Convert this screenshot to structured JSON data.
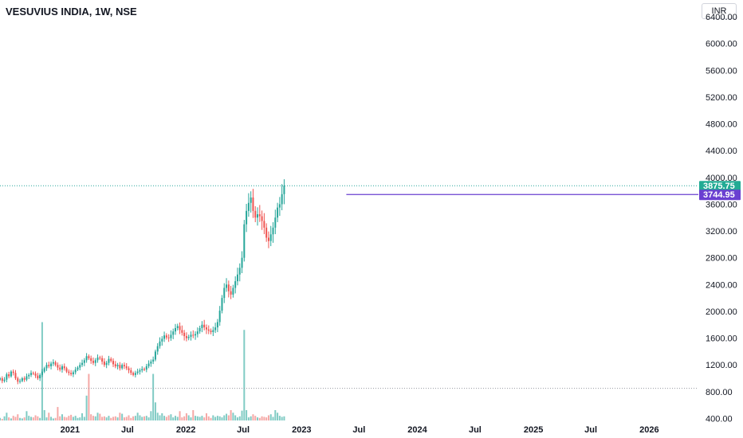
{
  "header": {
    "title": "VESUVIUS INDIA, 1W, NSE",
    "currency": "INR"
  },
  "colors": {
    "up": "#26a69a",
    "down": "#ef5350",
    "up_volume": "#80cbc4",
    "down_volume": "#f5a8a6",
    "last_price_tag": "#22ab94",
    "level_line": "#6a3fd1",
    "level_tag": "#6a3fd1"
  },
  "chart_data": {
    "type": "candlestick",
    "ylim": [
      370,
      6650
    ],
    "y_ticks": [
      "6400.00",
      "6000.00",
      "5600.00",
      "5200.00",
      "4800.00",
      "4400.00",
      "4000.00",
      "3600.00",
      "3200.00",
      "2800.00",
      "2400.00",
      "2000.00",
      "1600.00",
      "1200.00",
      "800.00",
      "400.00"
    ],
    "x_range": [
      "2020-05-25",
      "2026-06-05"
    ],
    "x_ticks": [
      {
        "date": "2021-01-01",
        "label": "2021"
      },
      {
        "date": "2021-07-01",
        "label": "Jul"
      },
      {
        "date": "2022-01-01",
        "label": "2022"
      },
      {
        "date": "2022-07-01",
        "label": "Jul"
      },
      {
        "date": "2023-01-01",
        "label": "2023"
      },
      {
        "date": "2023-07-01",
        "label": "Jul"
      },
      {
        "date": "2024-01-01",
        "label": "2024"
      },
      {
        "date": "2024-07-01",
        "label": "Jul"
      },
      {
        "date": "2025-01-01",
        "label": "2025"
      },
      {
        "date": "2025-07-01",
        "label": "Jul"
      },
      {
        "date": "2026-01-01",
        "label": "2026"
      }
    ],
    "last_price": {
      "value": 3875.75,
      "label": "3875.75"
    },
    "level_line": {
      "value": 3744.95,
      "label": "3744.95",
      "start": "2023-05-22"
    },
    "reference_line": 850,
    "start_date": "2020-05-25",
    "interval_days": 7,
    "closes": [
      1000,
      960,
      980,
      1060,
      1030,
      1100,
      1080,
      1000,
      950,
      960,
      1000,
      980,
      1030,
      1050,
      1080,
      1070,
      1040,
      1000,
      1050,
      1100,
      1150,
      1200,
      1180,
      1220,
      1240,
      1200,
      1160,
      1130,
      1180,
      1150,
      1100,
      1080,
      1060,
      1090,
      1130,
      1160,
      1200,
      1230,
      1270,
      1330,
      1300,
      1260,
      1230,
      1270,
      1310,
      1300,
      1250,
      1200,
      1230,
      1290,
      1260,
      1210,
      1180,
      1200,
      1150,
      1200,
      1180,
      1150,
      1120,
      1080,
      1050,
      1080,
      1100,
      1120,
      1140,
      1130,
      1180,
      1220,
      1250,
      1280,
      1400,
      1480,
      1550,
      1590,
      1640,
      1610,
      1600,
      1650,
      1700,
      1750,
      1780,
      1720,
      1680,
      1630,
      1600,
      1620,
      1650,
      1640,
      1660,
      1700,
      1750,
      1800,
      1760,
      1730,
      1710,
      1690,
      1720,
      1760,
      1840,
      2010,
      2200,
      2350,
      2400,
      2300,
      2250,
      2350,
      2450,
      2550,
      2650,
      2800,
      3300,
      3500,
      3620,
      3700,
      3500,
      3400,
      3450,
      3420,
      3350,
      3250,
      3100,
      3050,
      3150,
      3250,
      3400,
      3550,
      3600,
      3750,
      3875.75
    ],
    "volumes": [
      50,
      30,
      80,
      150,
      60,
      40,
      90,
      70,
      120,
      50,
      40,
      60,
      180,
      90,
      70,
      60,
      100,
      80,
      50,
      1900,
      200,
      60,
      150,
      70,
      40,
      50,
      260,
      80,
      120,
      70,
      60,
      90,
      110,
      70,
      90,
      50,
      60,
      140,
      70,
      480,
      900,
      120,
      90,
      80,
      150,
      130,
      70,
      80,
      60,
      90,
      50,
      70,
      80,
      60,
      150,
      130,
      60,
      70,
      100,
      50,
      80,
      90,
      150,
      100,
      70,
      80,
      90,
      60,
      180,
      900,
      350,
      150,
      100,
      140,
      90,
      70,
      100,
      120,
      60,
      90,
      70,
      180,
      60,
      80,
      140,
      100,
      60,
      200,
      90,
      80,
      70,
      90,
      60,
      140,
      80,
      50,
      100,
      70,
      90,
      80,
      60,
      100,
      130,
      100,
      200,
      150,
      100,
      60,
      80,
      190,
      1750,
      200,
      60,
      80,
      120,
      90,
      60,
      50,
      80,
      70,
      60,
      100,
      120,
      70,
      200,
      150,
      90,
      70,
      80
    ]
  }
}
